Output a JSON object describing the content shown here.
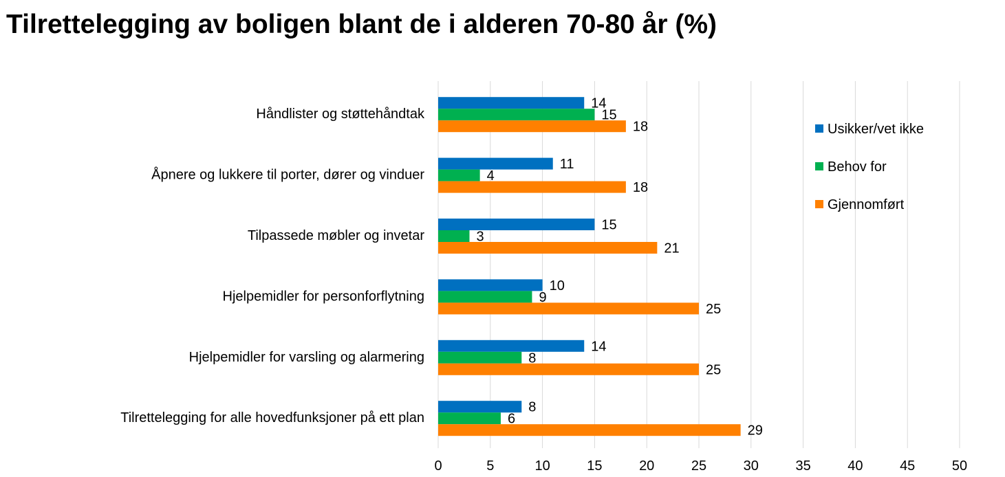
{
  "chart_data": {
    "type": "bar",
    "orientation": "horizontal",
    "title": "Tilrettelegging av boligen blant de i alderen 70-80 år (%)",
    "categories": [
      "Håndlister og støttehåndtak",
      "Åpnere og lukkere til porter, dører og vinduer",
      "Tilpassede møbler og invetar",
      "Hjelpemidler for personforflytning",
      "Hjelpemidler for varsling og alarmering",
      "Tilrettelegging for alle hovedfunksjoner på ett plan"
    ],
    "series": [
      {
        "name": "Usikker/vet ikke",
        "color": "#0070C0",
        "values": [
          14,
          11,
          15,
          10,
          14,
          8
        ]
      },
      {
        "name": "Behov for",
        "color": "#00B050",
        "values": [
          15,
          4,
          3,
          9,
          8,
          6
        ]
      },
      {
        "name": "Gjennomført",
        "color": "#FF8000",
        "values": [
          18,
          18,
          21,
          25,
          25,
          29
        ]
      }
    ],
    "xlim": [
      0,
      50
    ],
    "xticks": [
      "0",
      "5",
      "10",
      "15",
      "20",
      "25",
      "30",
      "35",
      "40",
      "45",
      "50"
    ],
    "grid": true,
    "legend_position": "right"
  }
}
